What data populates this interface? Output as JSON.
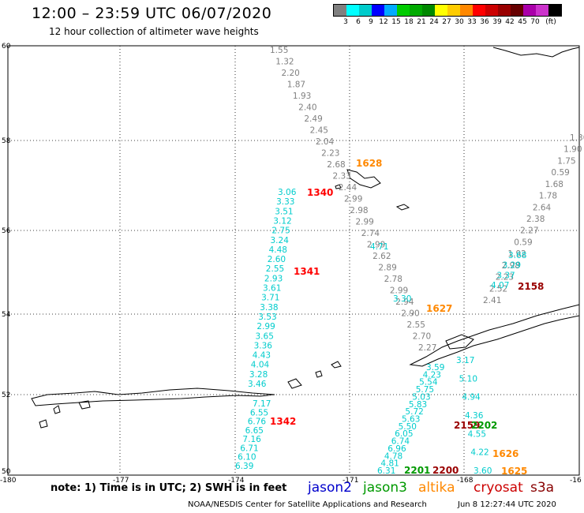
{
  "header": {
    "title": "12:00 – 23:59 UTC 06/07/2020",
    "subtitle": "12 hour collection of altimeter wave heights"
  },
  "color_scale": {
    "colors": [
      "#808080",
      "#00ffff",
      "#00cccc",
      "#0000ff",
      "#00aaff",
      "#00cc00",
      "#00aa00",
      "#008800",
      "#ffff00",
      "#ffcc00",
      "#ff8800",
      "#ff0000",
      "#cc0000",
      "#990000",
      "#660000",
      "#aa00aa",
      "#cc33cc",
      "#000000"
    ],
    "labels": [
      "3",
      "6",
      "9",
      "12",
      "15",
      "18",
      "21",
      "24",
      "27",
      "30",
      "33",
      "36",
      "39",
      "42",
      "45",
      "70",
      "(ft)"
    ]
  },
  "map": {
    "lat_labels": [
      "60",
      "58",
      "56",
      "54",
      "52",
      "50"
    ],
    "lon_labels": [
      "-180",
      "-177",
      "-174",
      "-171",
      "-168",
      "-16"
    ],
    "passes": [
      {
        "sat": "jason2",
        "color": "#808080",
        "label_color": "#ff0000",
        "time": "1340",
        "values": [
          "1.55",
          "1.32",
          "2.20",
          "1.87",
          "1.93",
          "2.40",
          "2.49",
          "2.45",
          "2.04",
          "2.23",
          "2.68",
          "2.33",
          "2.44",
          "2.99",
          "2.98",
          "2.99",
          "2.74",
          "2.99",
          "2.62",
          "2.89",
          "2.78",
          "2.99",
          "2.94",
          "2.90",
          "2.55",
          "2.70",
          "2.27"
        ]
      },
      {
        "sat": "jason2",
        "color": "#00cccc",
        "label_color": "#ff0000",
        "time": "1341",
        "values": [
          "3.06",
          "3.33",
          "3.51",
          "3.12",
          "2.75",
          "3.24",
          "4.48",
          "2.60",
          "2.55",
          "2.93",
          "3.61",
          "3.71",
          "3.38",
          "3.53",
          "2.99",
          "3.65",
          "3.36",
          "4.43",
          "4.04",
          "3.28",
          "3.46"
        ]
      },
      {
        "sat": "jason2",
        "color": "#00cccc",
        "label_color": "#ff0000",
        "time": "1342",
        "values": [
          "7.17",
          "6.55",
          "6.76",
          "6.65",
          "7.16",
          "6.71",
          "6.10",
          "6.39"
        ]
      },
      {
        "sat": "altika",
        "color": "#808080",
        "label_color": "#ff8800",
        "time": "1628",
        "values": []
      },
      {
        "sat": "altika",
        "color": "#00cccc",
        "label_color": "#ff8800",
        "time": "1627",
        "values": [
          "4.71",
          "3.30"
        ]
      },
      {
        "sat": "altika",
        "color": "#00cccc",
        "label_color": "#ff8800",
        "time": "1626",
        "values": [
          "3.17",
          "5.10",
          "4.94",
          "4.36",
          "4.55",
          "4.22",
          "3.60"
        ]
      },
      {
        "sat": "altika",
        "color": "#00cccc",
        "label_color": "#ff8800",
        "time": "1625",
        "values": []
      },
      {
        "sat": "s3a",
        "color": "#808080",
        "label_color": "#990000",
        "time": "2158",
        "values": [
          "2.41",
          "2.52",
          "2.23",
          "2.98",
          "1.92",
          "0.59",
          "2.27",
          "2.38",
          "2.64",
          "1.78",
          "1.68",
          "0.59",
          "1.75",
          "1.90",
          "1.30"
        ]
      },
      {
        "sat": "s3a",
        "color": "#00cccc",
        "label_color": "#990000",
        "time": "2158b",
        "values": [
          "4.07",
          "3.37",
          "3.29",
          "3.68"
        ]
      },
      {
        "sat": "jason3",
        "color": "#00cccc",
        "label_color": "#009900",
        "time": "2200",
        "values": [
          "3.59",
          "4.23",
          "5.54",
          "5.75",
          "5.03",
          "5.83",
          "5.72",
          "5.63",
          "5.50",
          "6.05",
          "6.74",
          "6.96",
          "4.78",
          "4.81",
          "6.31"
        ]
      }
    ],
    "pass_labels": {
      "l1340": "1340",
      "l1341": "1341",
      "l1342": "1342",
      "l1628": "1628",
      "l1627": "1627",
      "l1626": "1626",
      "l1625": "1625",
      "l2158": "2158",
      "l2159": "2159",
      "l2200": "2200",
      "l2201": "2201",
      "l2202": "2202"
    }
  },
  "footer": {
    "note": "note:  1) Time is in UTC;  2) SWH is in feet",
    "legend": [
      {
        "name": "jason2",
        "color": "#0000cc"
      },
      {
        "name": "jason3",
        "color": "#009900"
      },
      {
        "name": "altika",
        "color": "#ff8800"
      },
      {
        "name": "cryosat",
        "color": "#cc0000"
      },
      {
        "name": "s3a",
        "color": "#880000"
      }
    ],
    "credit": "NOAA/NESDIS Center for Satellite Applications and Research",
    "timestamp": "Jun  8 12:27:44 UTC 2020"
  }
}
